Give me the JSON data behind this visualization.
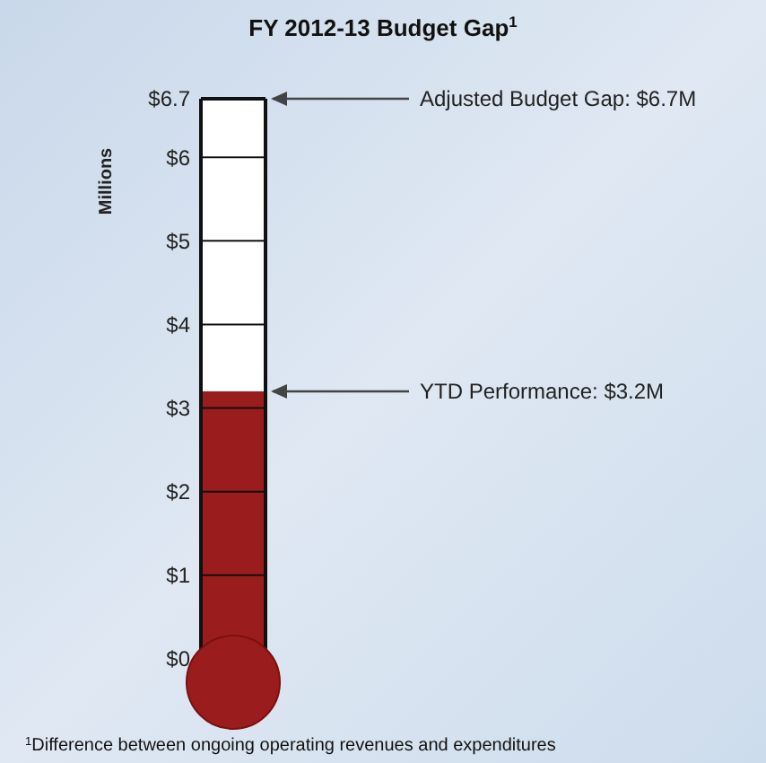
{
  "chart_data": {
    "type": "bar",
    "title": "FY 2012-13 Budget Gap$^{1}$",
    "ylabel": "Millions",
    "categories": [
      null
    ],
    "values": [
      3.2
    ],
    "color": "#9b1c1c",
    "ylim": [
      0,
      6.7
    ],
    "yticks": [
      {
        "value": 0,
        "label": "$0"
      },
      {
        "value": 1,
        "label": "$1"
      },
      {
        "value": 2,
        "label": "$2"
      },
      {
        "value": 3,
        "label": "$3"
      },
      {
        "value": 4,
        "label": "$4"
      },
      {
        "value": 5,
        "label": "$5"
      },
      {
        "value": 6,
        "label": "$6"
      },
      {
        "value": 6.7,
        "label": "$6.7"
      }
    ],
    "grid": "y",
    "annotations": [
      "Adjusted Budget Gap: $6.7M",
      "YTD Performance: $3.2M",
      "$^{1}$Difference between ongoing operating revenues and expenditures"
    ]
  }
}
